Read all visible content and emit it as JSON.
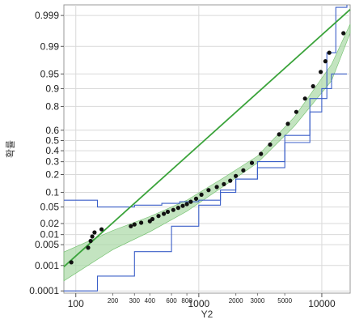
{
  "chart_data": {
    "type": "scatter",
    "title": "",
    "xlabel": "Y2",
    "ylabel": "확률",
    "x_scale": "log",
    "y_scale": "probability",
    "xlim": [
      80,
      17000
    ],
    "ylim": [
      8e-05,
      0.9996
    ],
    "grid": true,
    "y_ticks": [
      0.999,
      0.99,
      0.95,
      0.9,
      0.8,
      0.6,
      0.5,
      0.4,
      0.3,
      0.2,
      0.1,
      0.05,
      0.02,
      0.01,
      0.005,
      0.001,
      0.0001
    ],
    "y_tick_labels": [
      "0.999",
      "0.99",
      "0.95",
      "0.9",
      "0.8",
      "0.6",
      "0.5",
      "0.4",
      "0.3",
      "0.2",
      "0.1",
      "0.05",
      "0.02",
      "0.01",
      "0.005",
      "0.001",
      "0.0001"
    ],
    "x_major_ticks": [
      100,
      1000,
      10000
    ],
    "x_major_tick_labels": [
      "100",
      "1000",
      "10000"
    ],
    "x_minor_ticks": [
      200,
      300,
      400,
      600,
      800,
      2000,
      3000,
      5000
    ],
    "x_minor_tick_labels": [
      "200",
      "300",
      "400",
      "600",
      "800",
      "2000",
      "3000",
      "5000"
    ],
    "series": [
      {
        "role": "data-points",
        "x": [
          92,
          126,
          132,
          136,
          142,
          162,
          280,
          300,
          340,
          400,
          420,
          470,
          520,
          560,
          620,
          680,
          740,
          800,
          860,
          950,
          1050,
          1200,
          1400,
          1600,
          1800,
          2000,
          2300,
          2700,
          3200,
          3800,
          4500,
          5300,
          6200,
          7300,
          8500,
          9800,
          10700,
          11500,
          15000
        ],
        "y": [
          0.0013,
          0.004,
          0.0065,
          0.0088,
          0.0115,
          0.014,
          0.017,
          0.019,
          0.021,
          0.023,
          0.026,
          0.031,
          0.035,
          0.039,
          0.043,
          0.048,
          0.053,
          0.058,
          0.065,
          0.075,
          0.09,
          0.11,
          0.125,
          0.14,
          0.16,
          0.19,
          0.23,
          0.29,
          0.37,
          0.46,
          0.56,
          0.66,
          0.76,
          0.85,
          0.91,
          0.955,
          0.975,
          0.985,
          0.996
        ]
      },
      {
        "role": "fit-line",
        "x": [
          80,
          17000
        ],
        "y": [
          0.0009,
          0.9994
        ]
      },
      {
        "role": "confidence-band-upper",
        "x": [
          80,
          200,
          400,
          800,
          1600,
          3000,
          6000,
          12000,
          17000
        ],
        "y": [
          0.0029,
          0.013,
          0.03,
          0.07,
          0.18,
          0.35,
          0.72,
          0.97,
          0.998
        ]
      },
      {
        "role": "confidence-band-lower",
        "x": [
          80,
          200,
          400,
          800,
          1600,
          3000,
          6000,
          12000,
          17000
        ],
        "y": [
          0.00026,
          0.0035,
          0.012,
          0.04,
          0.13,
          0.29,
          0.64,
          0.93,
          0.996
        ]
      },
      {
        "role": "simultaneous-band-upper",
        "x": [
          80,
          120,
          150,
          300,
          500,
          700,
          1000,
          1500,
          2000,
          3000,
          5000,
          8000,
          11000,
          13000,
          16000
        ],
        "y": [
          0.07,
          0.07,
          0.05,
          0.055,
          0.06,
          0.065,
          0.07,
          0.1,
          0.17,
          0.3,
          0.55,
          0.85,
          0.985,
          0.9995,
          0.9996
        ]
      },
      {
        "role": "simultaneous-band-lower",
        "x": [
          80,
          150,
          300,
          600,
          1000,
          1500,
          2000,
          3000,
          5000,
          8000,
          10000,
          12000,
          16000
        ],
        "y": [
          0.0001,
          0.0004,
          0.003,
          0.017,
          0.055,
          0.11,
          0.17,
          0.25,
          0.48,
          0.76,
          0.9,
          0.95,
          0.95
        ]
      }
    ],
    "colors": {
      "points": "#111111",
      "fit_line": "#3aa33a",
      "confidence_band": "#a9d8a5",
      "simultaneous_band": "#3b5fc8",
      "grid": "#d9d9d9",
      "frame": "#9a9a9a"
    }
  }
}
